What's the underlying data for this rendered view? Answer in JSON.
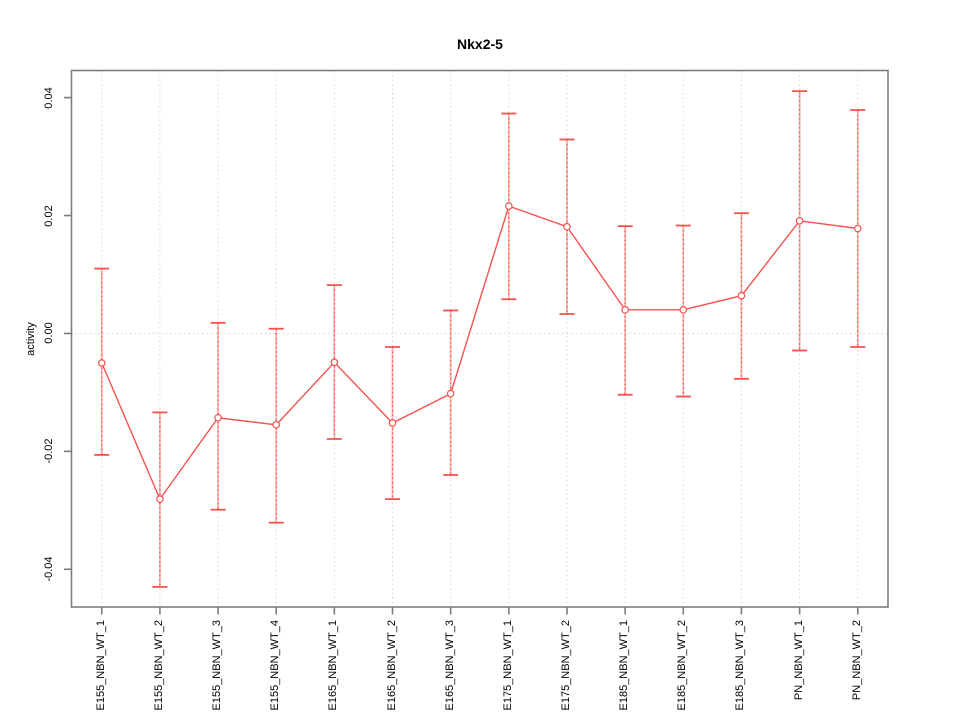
{
  "window": {
    "background": "#ffffff"
  },
  "chart_data": {
    "type": "line",
    "title": "Nkx2-5",
    "xlabel": "",
    "ylabel": "activity",
    "categories": [
      "E155_NBN_WT_1",
      "E155_NBN_WT_2",
      "E155_NBN_WT_3",
      "E155_NBN_WT_4",
      "E165_NBN_WT_1",
      "E165_NBN_WT_2",
      "E165_NBN_WT_3",
      "E175_NBN_WT_1",
      "E175_NBN_WT_2",
      "E185_NBN_WT_1",
      "E185_NBN_WT_2",
      "E185_NBN_WT_3",
      "PN_NBN_WT_1",
      "PN_NBN_WT_2"
    ],
    "series": [
      {
        "name": "activity",
        "values": [
          -0.005,
          -0.0281,
          -0.0143,
          -0.0155,
          -0.0049,
          -0.0152,
          -0.0102,
          0.0216,
          0.0181,
          0.004,
          0.004,
          0.0064,
          0.0191,
          0.0178
        ],
        "upper": [
          0.011,
          -0.0134,
          0.0018,
          0.0008,
          0.0082,
          -0.0023,
          0.0039,
          0.0373,
          0.0329,
          0.0182,
          0.0183,
          0.0204,
          0.0411,
          0.0379
        ],
        "lower": [
          -0.0206,
          -0.043,
          -0.0299,
          -0.0321,
          -0.0179,
          -0.0281,
          -0.024,
          0.0058,
          0.0033,
          -0.0104,
          -0.0107,
          -0.0077,
          -0.0029,
          -0.0023
        ]
      }
    ],
    "yticks": [
      -0.04,
      -0.02,
      0,
      0.02,
      0.04
    ],
    "ytick_labels": [
      "-0.04",
      "-0.02",
      "0.00",
      "0.02",
      "0.04"
    ],
    "ylim": [
      -0.0464,
      0.0446
    ],
    "grid": {
      "vertical_at_each_category": true,
      "horizontal_zero_line": true
    },
    "legend_position": "none",
    "marker": "open-circle",
    "colors": {
      "series_line": "#f4534e",
      "marker_stroke": "#f4534e",
      "error_bar_cap": "#f4534e",
      "error_bar_line": "#fbb0ae",
      "error_bar_dash": "#f4534e",
      "grid": "#d6d6d6",
      "axis": "#7d7d7d",
      "text": "#000000"
    }
  }
}
